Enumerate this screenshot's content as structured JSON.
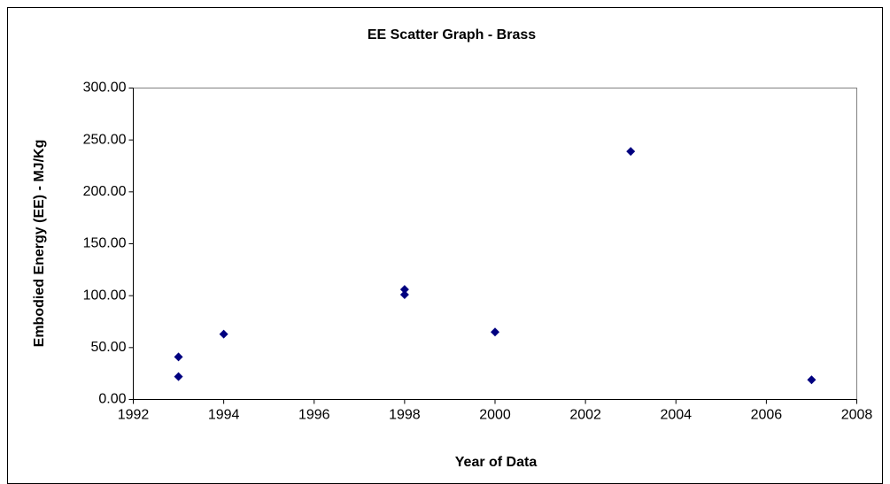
{
  "chart_data": {
    "type": "scatter",
    "title": "EE Scatter Graph - Brass",
    "x_label": "Year of Data",
    "y_label": "Embodied Energy (EE) - MJ/Kg",
    "series": [
      {
        "color": "#000080",
        "x": [
          1993,
          1993,
          1994,
          1998,
          1998,
          2000,
          2003,
          2007
        ],
        "values": [
          41,
          22,
          63,
          106,
          101,
          65,
          239,
          19
        ]
      }
    ],
    "xlim": [
      1992,
      2008
    ],
    "xticks": [
      1992,
      1994,
      1996,
      1998,
      2000,
      2002,
      2004,
      2006,
      2008
    ],
    "ylim": [
      0,
      300
    ],
    "yticks": [
      {
        "value": 0,
        "label": "0.00"
      },
      {
        "value": 50,
        "label": "50.00"
      },
      {
        "value": 100,
        "label": "100.00"
      },
      {
        "value": 150,
        "label": "150.00"
      },
      {
        "value": 200,
        "label": "200.00"
      },
      {
        "value": 250,
        "label": "250.00"
      },
      {
        "value": 300,
        "label": "300.00"
      }
    ]
  }
}
